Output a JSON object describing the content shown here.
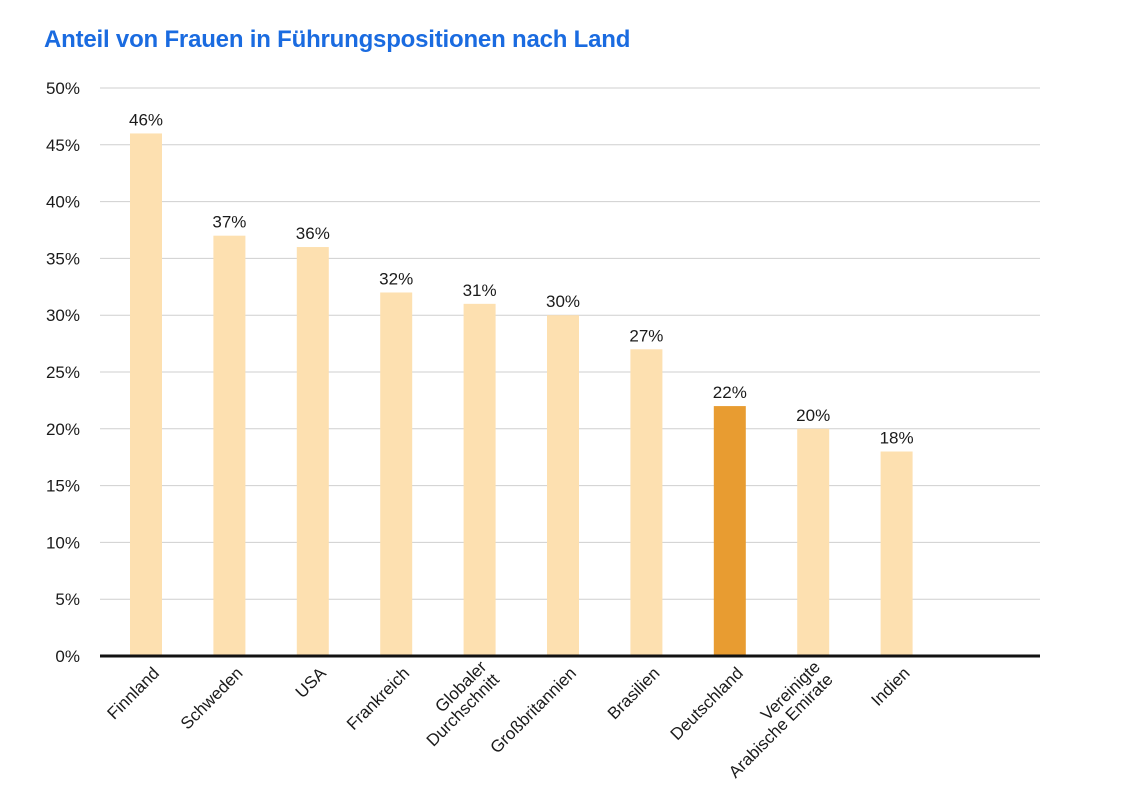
{
  "chart_data": {
    "type": "bar",
    "title": "Anteil von Frauen in Führungspositionen nach Land",
    "xlabel": "",
    "ylabel": "",
    "categories": [
      [
        "Finnland"
      ],
      [
        "Schweden"
      ],
      [
        "USA"
      ],
      [
        "Frankreich"
      ],
      [
        "Globaler",
        "Durchschnitt"
      ],
      [
        "Großbritannien"
      ],
      [
        "Brasilien"
      ],
      [
        "Deutschland"
      ],
      [
        "Vereinigte",
        "Arabische Emirate"
      ],
      [
        "Indien"
      ]
    ],
    "values": [
      46,
      37,
      36,
      32,
      31,
      30,
      27,
      22,
      20,
      18
    ],
    "value_labels": [
      "46%",
      "37%",
      "36%",
      "32%",
      "31%",
      "30%",
      "27%",
      "22%",
      "20%",
      "18%"
    ],
    "highlight_index": 7,
    "ylim": [
      0,
      50
    ],
    "yticks": [
      0,
      5,
      10,
      15,
      20,
      25,
      30,
      35,
      40,
      45,
      50
    ],
    "ytick_labels": [
      "0%",
      "5%",
      "10%",
      "15%",
      "20%",
      "25%",
      "30%",
      "35%",
      "40%",
      "45%",
      "50%"
    ],
    "grid": true,
    "legend": "none",
    "colors": {
      "bar": "#fde0b0",
      "highlight": "#e89c31",
      "title": "#1a6be0",
      "grid": "#cfcfcf",
      "axis": "#111111"
    }
  }
}
